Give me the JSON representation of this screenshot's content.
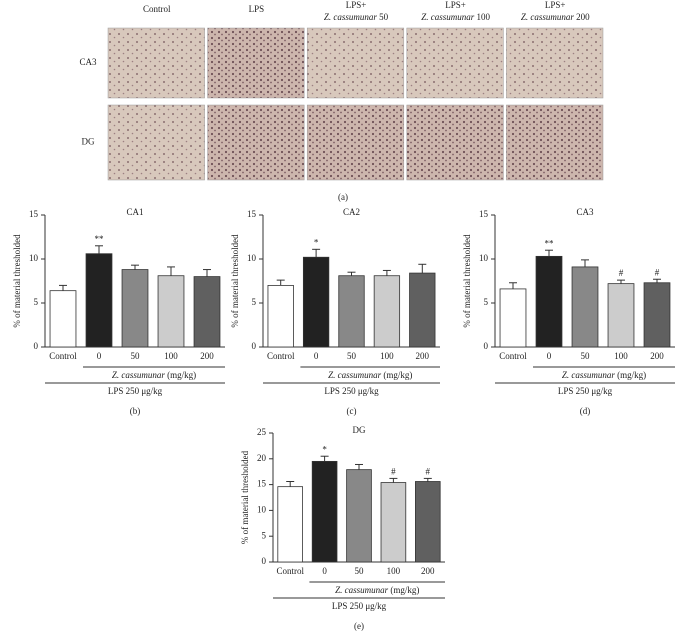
{
  "panel_a": {
    "columns": [
      {
        "line1": "Control"
      },
      {
        "line1": "LPS"
      },
      {
        "line1": "LPS+",
        "species": "Z. cassumunar",
        "dose": "50"
      },
      {
        "line1": "LPS+",
        "species": "Z. cassumunar",
        "dose": "100"
      },
      {
        "line1": "LPS+",
        "species": "Z. cassumunar",
        "dose": "200"
      }
    ],
    "rows": [
      "CA3",
      "DG"
    ],
    "label": "(a)"
  },
  "chart_data": [
    {
      "type": "bar",
      "title": "CA1",
      "ylabel": "% of material thresholded",
      "categories": [
        "Control",
        "0",
        "50",
        "100",
        "200"
      ],
      "values": [
        6.4,
        10.6,
        8.8,
        8.1,
        8.0
      ],
      "errors": [
        0.6,
        0.9,
        0.5,
        1.0,
        0.8
      ],
      "colors": [
        "#ffffff",
        "#222222",
        "#888888",
        "#cccccc",
        "#606060"
      ],
      "annotations": [
        null,
        "**",
        null,
        null,
        null
      ],
      "ylim": [
        0,
        15
      ],
      "yticks": [
        0,
        5,
        10,
        15
      ],
      "xlabel_species": "Z. cassumunar",
      "xlabel": "(mg/kg)",
      "group_label": "LPS 250 μg/kg",
      "panel_label": "(b)"
    },
    {
      "type": "bar",
      "title": "CA2",
      "ylabel": "% of material thresholded",
      "categories": [
        "Control",
        "0",
        "50",
        "100",
        "200"
      ],
      "values": [
        7.0,
        10.2,
        8.1,
        8.1,
        8.4
      ],
      "errors": [
        0.6,
        0.9,
        0.4,
        0.6,
        1.0
      ],
      "colors": [
        "#ffffff",
        "#222222",
        "#888888",
        "#cccccc",
        "#606060"
      ],
      "annotations": [
        null,
        "*",
        null,
        null,
        null
      ],
      "ylim": [
        0,
        15
      ],
      "yticks": [
        0,
        5,
        10,
        15
      ],
      "xlabel_species": "Z. cassumunar",
      "xlabel": "(mg/kg)",
      "group_label": "LPS 250 μg/kg",
      "panel_label": "(c)"
    },
    {
      "type": "bar",
      "title": "CA3",
      "ylabel": "% of material thresholded",
      "categories": [
        "Control",
        "0",
        "50",
        "100",
        "200"
      ],
      "values": [
        6.6,
        10.3,
        9.1,
        7.2,
        7.3
      ],
      "errors": [
        0.7,
        0.7,
        0.8,
        0.4,
        0.4
      ],
      "colors": [
        "#ffffff",
        "#222222",
        "#888888",
        "#cccccc",
        "#606060"
      ],
      "annotations": [
        null,
        "**",
        null,
        "#",
        "#"
      ],
      "ylim": [
        0,
        15
      ],
      "yticks": [
        0,
        5,
        10,
        15
      ],
      "xlabel_species": "Z. cassumunar",
      "xlabel": "(mg/kg)",
      "group_label": "LPS 250 μg/kg",
      "panel_label": "(d)"
    },
    {
      "type": "bar",
      "title": "DG",
      "ylabel": "% of material thresholded",
      "categories": [
        "Control",
        "0",
        "50",
        "100",
        "200"
      ],
      "values": [
        14.6,
        19.5,
        17.9,
        15.4,
        15.6
      ],
      "errors": [
        1.0,
        1.0,
        1.0,
        0.8,
        0.6
      ],
      "colors": [
        "#ffffff",
        "#222222",
        "#888888",
        "#cccccc",
        "#606060"
      ],
      "annotations": [
        null,
        "*",
        null,
        "#",
        "#"
      ],
      "ylim": [
        0,
        25
      ],
      "yticks": [
        0,
        5,
        10,
        15,
        20,
        25
      ],
      "xlabel_species": "Z. cassumunar",
      "xlabel": "(mg/kg)",
      "group_label": "LPS 250 μg/kg",
      "panel_label": "(e)"
    }
  ]
}
